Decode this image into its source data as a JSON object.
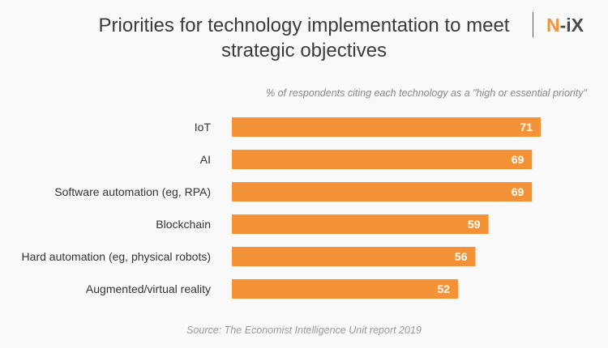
{
  "chart_data": {
    "type": "bar",
    "orientation": "horizontal",
    "title": "Priorities for technology implementation to meet strategic objectives",
    "subtitle": "% of respondents citing each technology as a \"high or essential priority\"",
    "categories": [
      "IoT",
      "AI",
      "Software automation (eg, RPA)",
      "Blockchain",
      "Hard automation (eg, physical robots)",
      "Augmented/virtual reality"
    ],
    "values": [
      71,
      69,
      69,
      59,
      56,
      52
    ],
    "xlim": [
      0,
      100
    ],
    "grid": false,
    "bar_color": "#f39237",
    "source": "Source: The Economist Intelligence Unit report 2019"
  },
  "logo": {
    "text": "N-iX",
    "accent": "N",
    "rest": "-iX"
  }
}
